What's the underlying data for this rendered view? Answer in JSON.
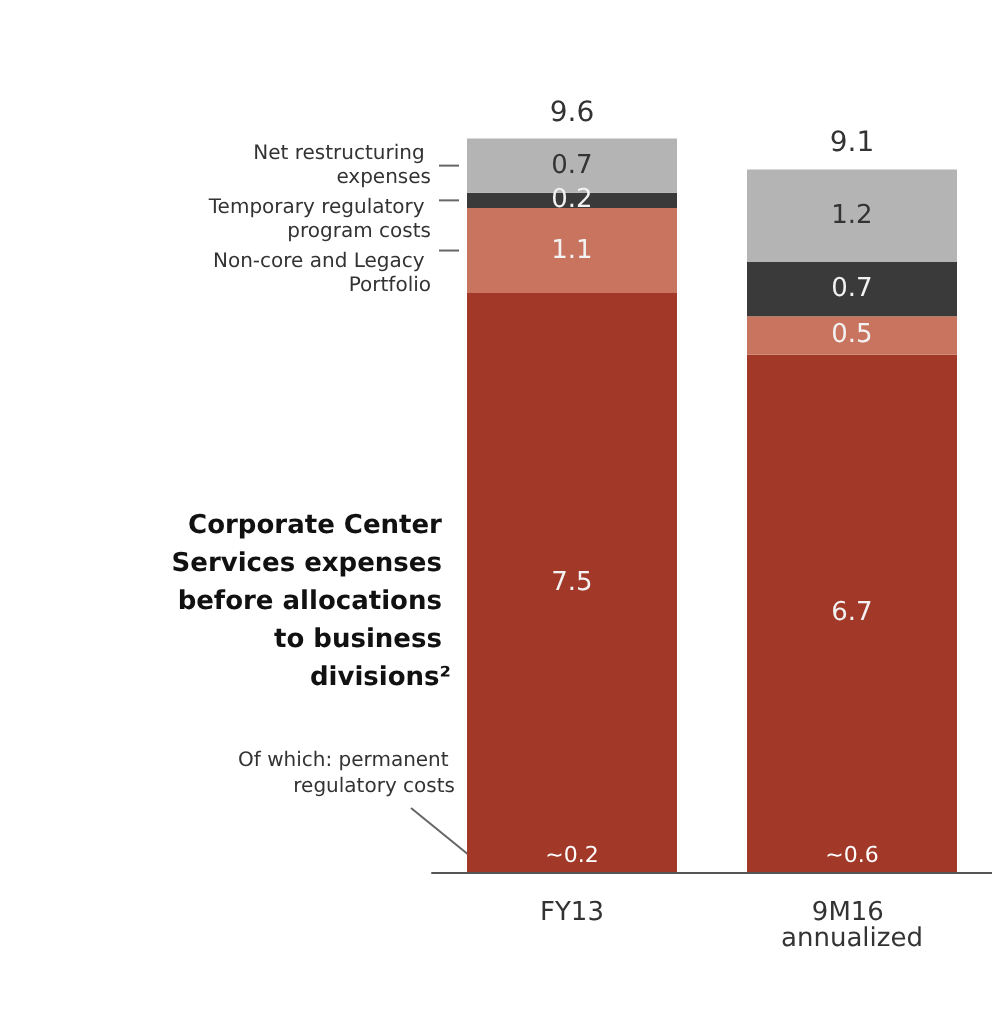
{
  "chart_data": {
    "type": "bar",
    "stacked": true,
    "tick_labels": "x",
    "data_labels": true,
    "categories": [
      "FY13",
      "9M16 annualized"
    ],
    "series": [
      {
        "name": "Corporate Center Services expenses before allocations to business divisions²",
        "color": "#a23828",
        "values": [
          7.5,
          6.7
        ]
      },
      {
        "name": "Non-core and Legacy Portfolio",
        "color": "#c8745f",
        "values": [
          1.1,
          0.5
        ]
      },
      {
        "name": "Temporary regulatory program costs",
        "color": "#3a3a3a",
        "values": [
          0.2,
          0.7
        ]
      },
      {
        "name": "Net restructuring expenses",
        "color": "#b4b4b4",
        "values": [
          0.7,
          1.2
        ]
      }
    ],
    "totals": [
      "9.6",
      "9.1"
    ],
    "annotations": [
      "Of which: permanent regulatory costs",
      "~0.2",
      "~0.6"
    ]
  }
}
